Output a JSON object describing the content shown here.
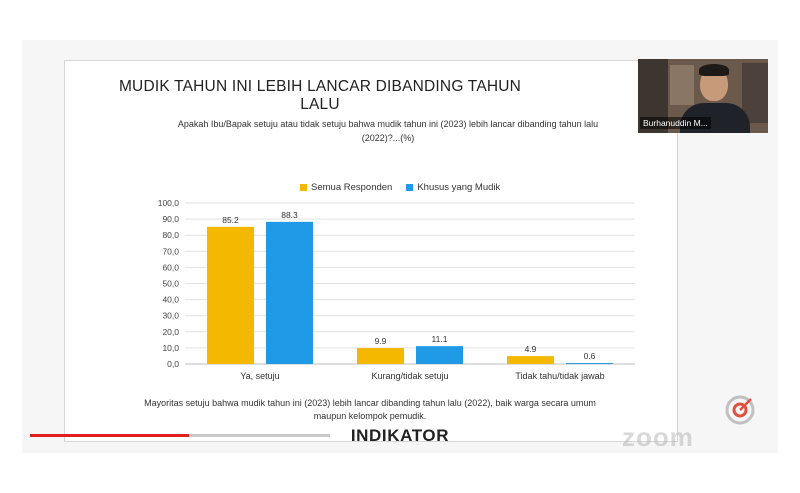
{
  "slide": {
    "title": "MUDIK TAHUN INI LEBIH LANCAR DIBANDING TAHUN LALU",
    "question": "Apakah Ibu/Bapak setuju atau tidak setuju bahwa mudik tahun ini (2023) lebih lancar dibanding tahun lalu (2022)?...(%)",
    "footnote": "Mayoritas setuju bahwa mudik tahun ini (2023) lebih lancar dibanding tahun lalu (2022), baik warga secara umum maupun kelompok pemudik.",
    "brand": "INDIKATOR"
  },
  "video": {
    "participant_name": "Burhanuddin M..."
  },
  "player": {
    "progress": 0.53,
    "watermark": "zoom"
  },
  "colors": {
    "series_1": "#f5b800",
    "series_2": "#1f9ae6",
    "progress": "#e02020"
  },
  "chart_data": {
    "type": "bar",
    "categories": [
      "Ya, setuju",
      "Kurang/tidak setuju",
      "Tidak tahu/tidak jawab"
    ],
    "series": [
      {
        "name": "Semua Responden",
        "values": [
          85.2,
          9.9,
          4.9
        ],
        "labels": [
          "85.2",
          "9.9",
          "4.9"
        ]
      },
      {
        "name": "Khusus yang Mudik",
        "values": [
          88.3,
          11.1,
          0.6
        ],
        "labels": [
          "88.3",
          "11.1",
          "0.6"
        ]
      }
    ],
    "yticks": [
      "0,0",
      "10,0",
      "20,0",
      "30,0",
      "40,0",
      "50,0",
      "60,0",
      "70,0",
      "80,0",
      "90,0",
      "100,0"
    ],
    "ylim": [
      0,
      100
    ],
    "grid": true,
    "legend": "top-center"
  }
}
